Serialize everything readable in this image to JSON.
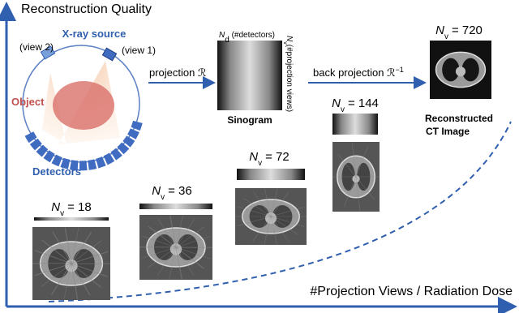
{
  "axes": {
    "y_label": "Reconstruction Quality",
    "x_label": "#Projection Views / Radiation Dose"
  },
  "scanner": {
    "source_label": "X-ray source",
    "view_2": "(view 2)",
    "view_1": "(view 1)",
    "object_label": "Object",
    "detector_label": "Detectors"
  },
  "projection": {
    "label": "projection",
    "operator": "ℛ"
  },
  "sinogram": {
    "label": "Sinogram",
    "detector_axis": {
      "symbol": "N",
      "subscript": "d",
      "text": "(#detectors)"
    },
    "view_axis": {
      "symbol": "N",
      "subscript": "v",
      "text": "(#projection views)"
    }
  },
  "back_projection": {
    "label": "back projection",
    "operator": "ℛ",
    "superscript": "−1"
  },
  "reconstructed_label": [
    "Reconstructed",
    "CT Image"
  ],
  "levels": [
    {
      "symbol": "N",
      "subscript": "v",
      "value": "= 720"
    },
    {
      "symbol": "N",
      "subscript": "v",
      "value": "= 144"
    },
    {
      "symbol": "N",
      "subscript": "v",
      "value": "= 72"
    },
    {
      "symbol": "N",
      "subscript": "v",
      "value": "= 36"
    },
    {
      "symbol": "N",
      "subscript": "v",
      "value": "= 18"
    }
  ]
}
